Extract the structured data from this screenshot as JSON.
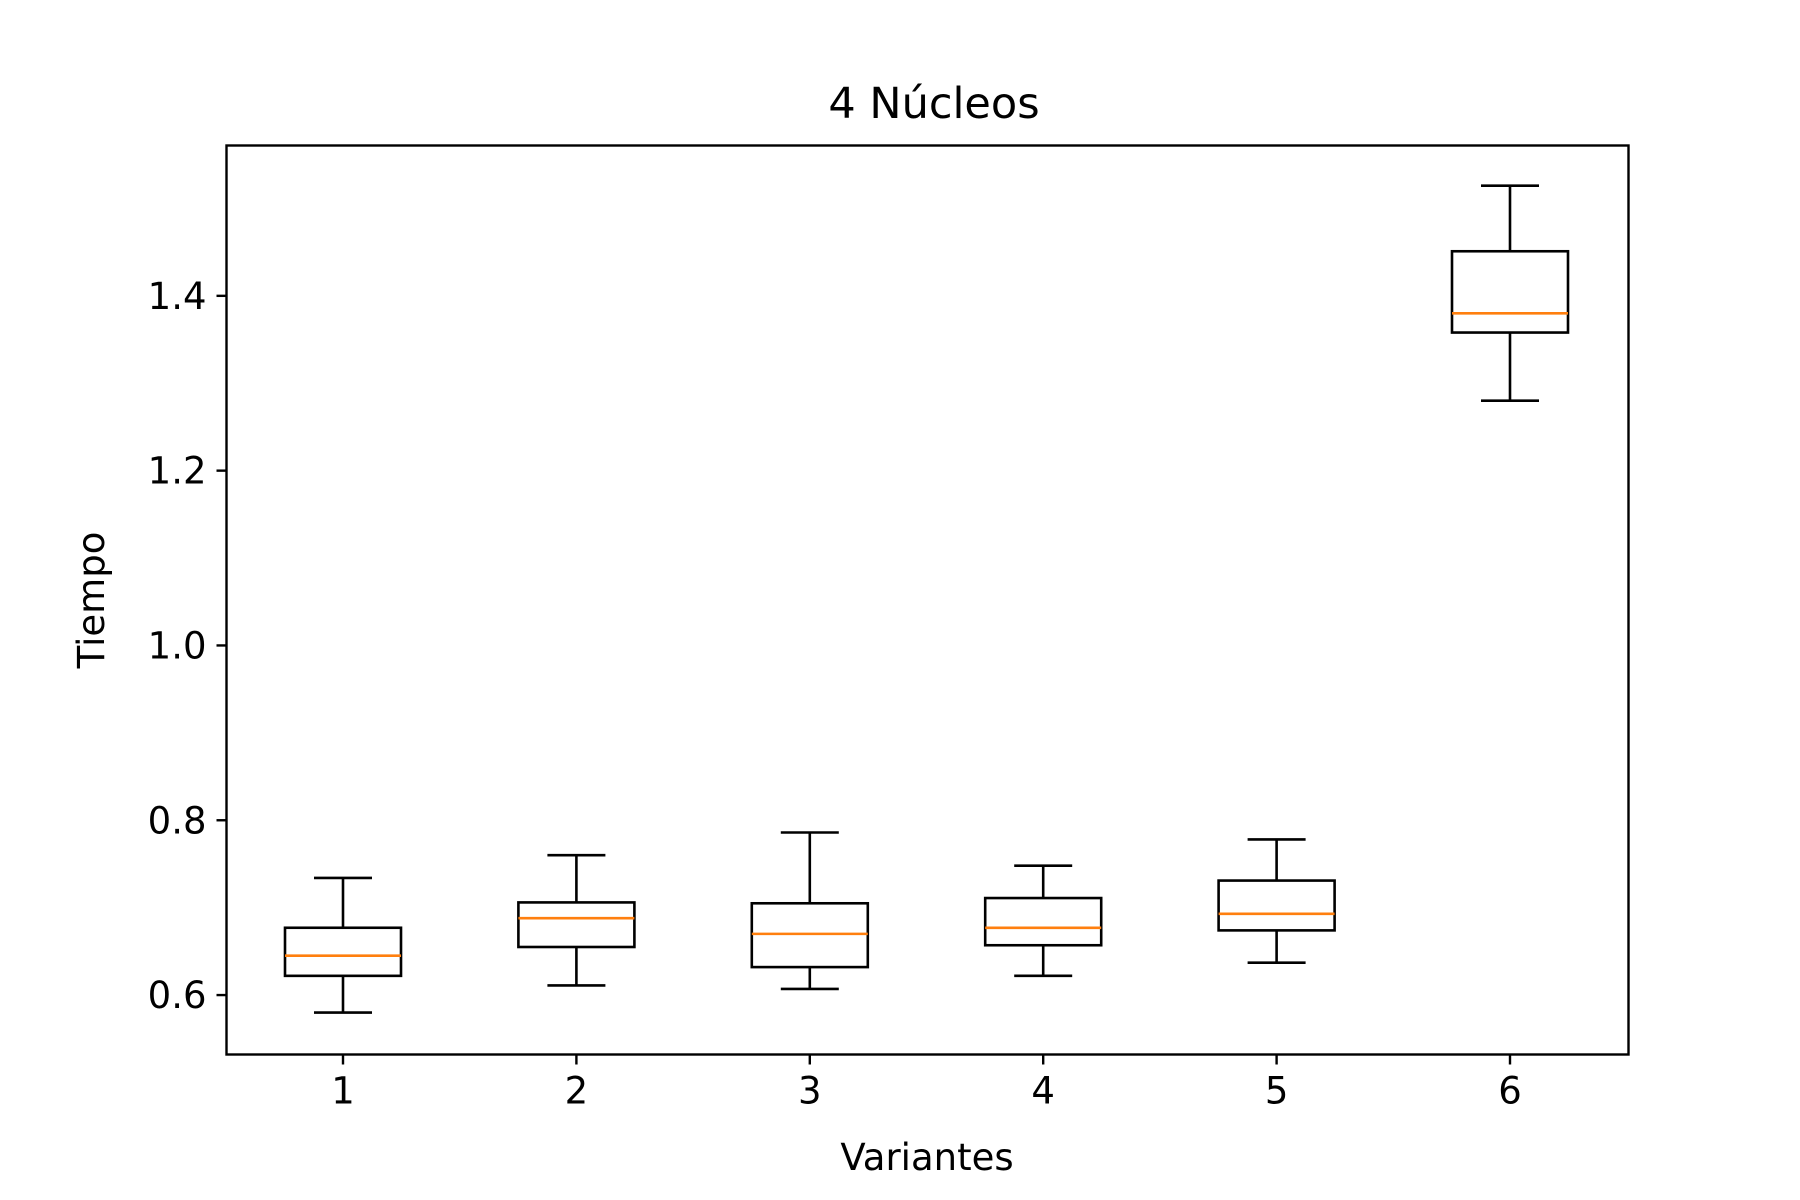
{
  "chart_data": {
    "type": "boxplot",
    "title": "4 Núcleos",
    "xlabel": "Variantes",
    "ylabel": "Tiempo",
    "categories": [
      "1",
      "2",
      "3",
      "4",
      "5",
      "6"
    ],
    "ylim": [
      0.532,
      1.572
    ],
    "yticks": [
      0.6,
      0.8,
      1.0,
      1.2,
      1.4
    ],
    "ytick_labels": [
      "0.6",
      "0.8",
      "1.0",
      "1.2",
      "1.4"
    ],
    "boxes": [
      {
        "label": "1",
        "whisker_low": 0.58,
        "q1": 0.622,
        "median": 0.645,
        "q3": 0.677,
        "whisker_high": 0.734
      },
      {
        "label": "2",
        "whisker_low": 0.611,
        "q1": 0.655,
        "median": 0.688,
        "q3": 0.706,
        "whisker_high": 0.76
      },
      {
        "label": "3",
        "whisker_low": 0.607,
        "q1": 0.632,
        "median": 0.67,
        "q3": 0.705,
        "whisker_high": 0.786
      },
      {
        "label": "4",
        "whisker_low": 0.622,
        "q1": 0.657,
        "median": 0.677,
        "q3": 0.711,
        "whisker_high": 0.748
      },
      {
        "label": "5",
        "whisker_low": 0.637,
        "q1": 0.674,
        "median": 0.693,
        "q3": 0.731,
        "whisker_high": 0.778
      },
      {
        "label": "6",
        "whisker_low": 1.28,
        "q1": 1.358,
        "median": 1.38,
        "q3": 1.451,
        "whisker_high": 1.526
      }
    ],
    "grid": false,
    "colors": {
      "box": "#000000",
      "median": "#ff7f0e",
      "axes": "#000000"
    }
  }
}
